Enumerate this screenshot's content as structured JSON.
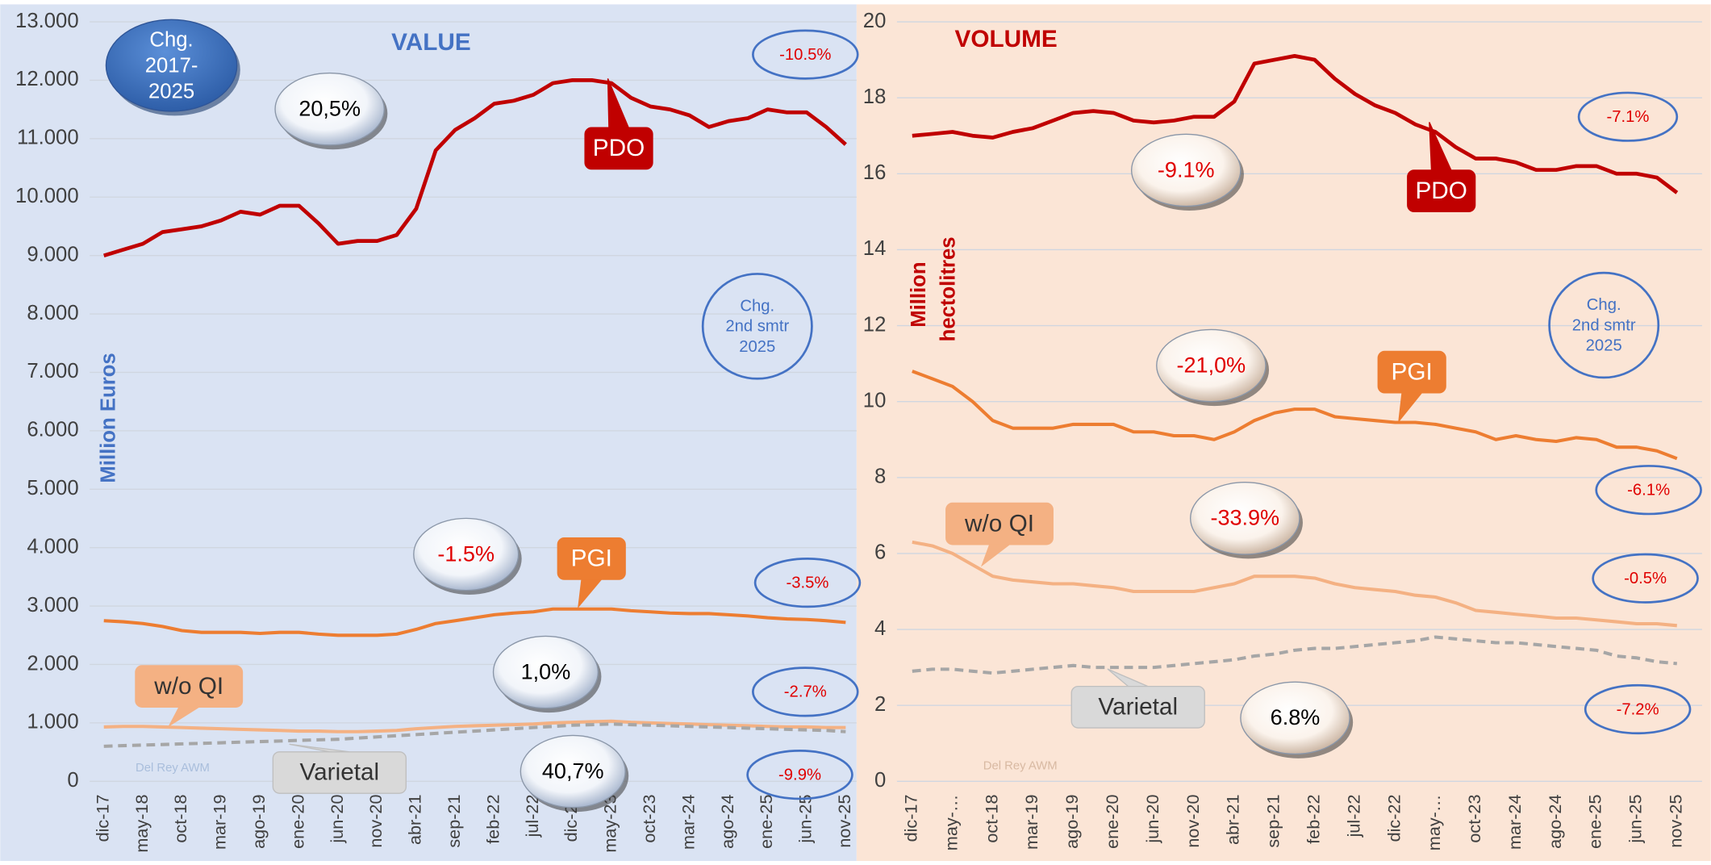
{
  "chart_data": [
    {
      "type": "line",
      "title": "VALUE",
      "y_label": [
        "Million Euros"
      ],
      "categories": [
        "dic-17",
        null,
        "may-18",
        null,
        "oct-18",
        null,
        "mar-19",
        null,
        "ago-19",
        null,
        "ene-20",
        null,
        "jun-20",
        null,
        "nov-20",
        null,
        "abr-21",
        null,
        "sep-21",
        null,
        "feb-22",
        null,
        "jul-22",
        null,
        "dic-22",
        null,
        "may-23",
        null,
        "oct-23",
        null,
        "mar-24",
        null,
        "ago-24",
        null,
        "ene-25",
        null,
        "jun-25",
        null,
        "nov-25"
      ],
      "series": [
        {
          "name": "PDO",
          "color": "#c00000",
          "values": [
            9000,
            9100,
            9200,
            9400,
            9450,
            9500,
            9600,
            9750,
            9700,
            9850,
            9850,
            9550,
            9200,
            9250,
            9250,
            9350,
            9800,
            10800,
            11150,
            11350,
            11600,
            11650,
            11750,
            11950,
            12000,
            12000,
            11950,
            11700,
            11550,
            11500,
            11400,
            11200,
            11300,
            11350,
            11500,
            11450,
            11450,
            11200,
            10900
          ]
        },
        {
          "name": "PGI",
          "color": "#ed7d31",
          "values": [
            2750,
            2730,
            2700,
            2650,
            2580,
            2550,
            2550,
            2550,
            2530,
            2550,
            2550,
            2520,
            2500,
            2500,
            2500,
            2520,
            2600,
            2700,
            2750,
            2800,
            2850,
            2880,
            2900,
            2950,
            2950,
            2950,
            2950,
            2920,
            2900,
            2880,
            2870,
            2870,
            2850,
            2830,
            2800,
            2780,
            2770,
            2750,
            2720
          ]
        },
        {
          "name": "w/o QI",
          "color": "#f4b183",
          "values": [
            930,
            940,
            940,
            930,
            920,
            910,
            900,
            890,
            880,
            870,
            860,
            860,
            850,
            850,
            860,
            870,
            900,
            920,
            940,
            950,
            960,
            970,
            980,
            1000,
            1010,
            1020,
            1030,
            1010,
            1000,
            990,
            980,
            970,
            960,
            950,
            940,
            930,
            930,
            920,
            920
          ]
        },
        {
          "name": "Varietal",
          "color": "#a6a6a6",
          "dashed": true,
          "values": [
            600,
            610,
            620,
            630,
            640,
            650,
            660,
            670,
            680,
            690,
            700,
            710,
            720,
            740,
            760,
            780,
            800,
            820,
            840,
            860,
            880,
            900,
            920,
            940,
            960,
            970,
            980,
            970,
            960,
            950,
            940,
            930,
            920,
            910,
            900,
            890,
            880,
            870,
            850
          ]
        }
      ],
      "ylim": [
        0,
        13000
      ],
      "yticks": [
        0,
        {
          "value": 1000,
          "label": "1.000"
        },
        {
          "value": 2000,
          "label": "2.000"
        },
        {
          "value": 3000,
          "label": "3.000"
        },
        {
          "value": 4000,
          "label": "4.000"
        },
        {
          "value": 5000,
          "label": "5.000"
        },
        {
          "value": 6000,
          "label": "6.000"
        },
        {
          "value": 7000,
          "label": "7.000"
        },
        {
          "value": 8000,
          "label": "8.000"
        },
        {
          "value": 9000,
          "label": "9.000"
        },
        {
          "value": 10000,
          "label": "10.000"
        },
        {
          "value": 11000,
          "label": "11.000"
        },
        {
          "value": 12000,
          "label": "12.000"
        },
        {
          "value": 13000,
          "label": "13.000"
        }
      ],
      "grid": true,
      "annotations": [
        [
          "Chg.",
          "2017-",
          "2025"
        ],
        [
          "20,5%"
        ],
        [
          "-10.5%"
        ],
        [
          "Chg.",
          "2nd smtr",
          "2025"
        ],
        [
          "-1.5%"
        ],
        [
          "-3.5%"
        ],
        [
          "1,0%"
        ],
        [
          "-2.7%"
        ],
        [
          "40,7%"
        ],
        [
          "-9.9%"
        ],
        [
          "Del Rey AWM"
        ]
      ]
    },
    {
      "type": "line",
      "title": "VOLUME",
      "y_label": [
        "Million",
        "hectolitres"
      ],
      "categories": [
        "dic-17",
        null,
        "may-…",
        null,
        "oct-18",
        null,
        "mar-19",
        null,
        "ago-19",
        null,
        "ene-20",
        null,
        "jun-20",
        null,
        "nov-20",
        null,
        "abr-21",
        null,
        "sep-21",
        null,
        "feb-22",
        null,
        "jul-22",
        null,
        "dic-22",
        null,
        "may-…",
        null,
        "oct-23",
        null,
        "mar-24",
        null,
        "ago-24",
        null,
        "ene-25",
        null,
        "jun-25",
        null,
        "nov-25"
      ],
      "series": [
        {
          "name": "PDO",
          "color": "#c00000",
          "values": [
            17.0,
            17.05,
            17.1,
            17.0,
            16.95,
            17.1,
            17.2,
            17.4,
            17.6,
            17.65,
            17.6,
            17.4,
            17.35,
            17.4,
            17.5,
            17.5,
            17.9,
            18.9,
            19.0,
            19.1,
            19.0,
            18.5,
            18.1,
            17.8,
            17.6,
            17.3,
            17.1,
            16.7,
            16.4,
            16.4,
            16.3,
            16.1,
            16.1,
            16.2,
            16.2,
            16.0,
            16.0,
            15.9,
            15.5
          ]
        },
        {
          "name": "PGI",
          "color": "#ed7d31",
          "values": [
            10.8,
            10.6,
            10.4,
            10.0,
            9.5,
            9.3,
            9.3,
            9.3,
            9.4,
            9.4,
            9.4,
            9.2,
            9.2,
            9.1,
            9.1,
            9.0,
            9.2,
            9.5,
            9.7,
            9.8,
            9.8,
            9.6,
            9.55,
            9.5,
            9.45,
            9.45,
            9.4,
            9.3,
            9.2,
            9.0,
            9.1,
            9.0,
            8.95,
            9.05,
            9.0,
            8.8,
            8.8,
            8.7,
            8.5
          ]
        },
        {
          "name": "w/o QI",
          "color": "#f4b183",
          "values": [
            6.3,
            6.2,
            6.0,
            5.7,
            5.4,
            5.3,
            5.25,
            5.2,
            5.2,
            5.15,
            5.1,
            5.0,
            5.0,
            5.0,
            5.0,
            5.1,
            5.2,
            5.4,
            5.4,
            5.4,
            5.35,
            5.2,
            5.1,
            5.05,
            5.0,
            4.9,
            4.85,
            4.7,
            4.5,
            4.45,
            4.4,
            4.35,
            4.3,
            4.3,
            4.25,
            4.2,
            4.15,
            4.15,
            4.1
          ]
        },
        {
          "name": "Varietal",
          "color": "#a6a6a6",
          "dashed": true,
          "values": [
            2.9,
            2.95,
            2.95,
            2.9,
            2.85,
            2.9,
            2.95,
            3.0,
            3.05,
            3.0,
            3.0,
            3.0,
            3.0,
            3.05,
            3.1,
            3.15,
            3.2,
            3.3,
            3.35,
            3.45,
            3.5,
            3.5,
            3.55,
            3.6,
            3.65,
            3.7,
            3.8,
            3.75,
            3.7,
            3.65,
            3.65,
            3.6,
            3.55,
            3.5,
            3.45,
            3.3,
            3.25,
            3.15,
            3.1
          ]
        }
      ],
      "ylim": [
        0,
        20
      ],
      "yticks": [
        0,
        2,
        4,
        6,
        8,
        10,
        12,
        14,
        16,
        18,
        20
      ],
      "grid": true,
      "annotations": [
        [
          "-7.1%"
        ],
        [
          "-9.1%"
        ],
        [
          "Chg.",
          "2nd smtr",
          "2025"
        ],
        [
          "-21,0%"
        ],
        [
          "-6.1%"
        ],
        [
          "-33.9%"
        ],
        [
          "-0.5%"
        ],
        [
          "6.8%"
        ],
        [
          "-7.2%"
        ],
        [
          "Del Rey AWM"
        ]
      ]
    }
  ]
}
